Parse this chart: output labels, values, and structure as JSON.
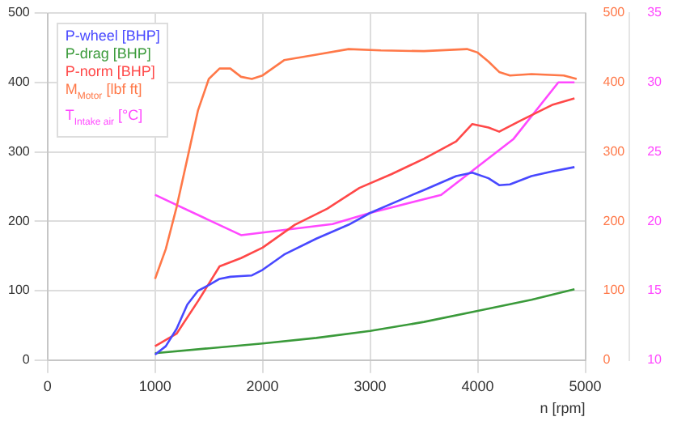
{
  "chart_data": {
    "type": "line",
    "xlabel": "n [rpm]",
    "xlim": [
      0,
      5000
    ],
    "xticks": [
      0,
      1000,
      2000,
      3000,
      4000,
      5000
    ],
    "ylim": [
      0,
      500
    ],
    "yticks": [
      0,
      100,
      200,
      300,
      400,
      500
    ],
    "y2lim": [
      0,
      500
    ],
    "y2ticks": [
      0,
      100,
      200,
      300,
      400,
      500
    ],
    "y3lim": [
      10,
      35
    ],
    "y3ticks": [
      10,
      15,
      20,
      25,
      30,
      35
    ],
    "grid": true,
    "legend": "top left",
    "marker": "none",
    "line_style": "solid",
    "series": [
      {
        "name": "P-wheel [BHP]",
        "color": "#4848ff",
        "x": [
          1000,
          1100,
          1200,
          1300,
          1400,
          1500,
          1600,
          1700,
          1800,
          1900,
          2000,
          2200,
          2500,
          2800,
          3000,
          3300,
          3500,
          3800,
          3950,
          4100,
          4200,
          4300,
          4500,
          4700,
          4900
        ],
        "values": [
          8,
          20,
          45,
          80,
          100,
          108,
          117,
          120,
          121,
          122,
          130,
          152,
          175,
          195,
          212,
          232,
          245,
          265,
          270,
          262,
          252,
          253,
          265,
          272,
          278
        ]
      },
      {
        "name": "P-drag [BHP]",
        "color": "#3a9a3a",
        "x": [
          1000,
          1500,
          2000,
          2500,
          3000,
          3500,
          4000,
          4500,
          4900
        ],
        "values": [
          10,
          17,
          24,
          32,
          42,
          55,
          71,
          87,
          102
        ]
      },
      {
        "name": "P-norm [BHP]",
        "color": "#ff4848",
        "x": [
          1000,
          1200,
          1400,
          1600,
          1800,
          2000,
          2300,
          2600,
          2900,
          3200,
          3500,
          3800,
          3950,
          4100,
          4200,
          4400,
          4700,
          4900
        ],
        "values": [
          20,
          38,
          85,
          135,
          147,
          162,
          195,
          218,
          248,
          268,
          290,
          315,
          340,
          335,
          329,
          345,
          368,
          377
        ]
      },
      {
        "name": "M$_{Motor}$ [lbf ft]",
        "color": "#ff7848",
        "axis": "y2",
        "x": [
          1000,
          1100,
          1200,
          1300,
          1400,
          1500,
          1600,
          1700,
          1800,
          1900,
          2000,
          2200,
          2500,
          2800,
          3100,
          3500,
          3900,
          4000,
          4100,
          4200,
          4300,
          4500,
          4800,
          4920
        ],
        "values": [
          117,
          160,
          220,
          290,
          360,
          405,
          420,
          420,
          408,
          405,
          410,
          432,
          440,
          448,
          446,
          445,
          448,
          443,
          430,
          415,
          410,
          412,
          410,
          405
        ]
      },
      {
        "name": "T$_{Intake air}$ [°C]",
        "color": "#ff48ff",
        "axis": "y3",
        "x": [
          1000,
          1800,
          2650,
          3000,
          3660,
          4330,
          4750,
          4900
        ],
        "values": [
          21.9,
          19.0,
          19.8,
          20.6,
          21.9,
          25.9,
          30,
          30
        ]
      }
    ]
  }
}
